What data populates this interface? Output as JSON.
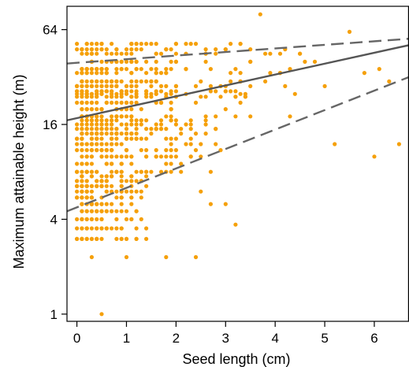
{
  "chart_data": {
    "type": "scatter",
    "title": "",
    "xlabel": "Seed length (cm)",
    "ylabel": "Maximum attainable height (m)",
    "xlim": [
      -0.2,
      6.7
    ],
    "ylim": [
      0.9,
      90
    ],
    "yscale": "log2",
    "xticks": [
      0,
      1,
      2,
      3,
      4,
      5,
      6
    ],
    "yticks": [
      1,
      4,
      16,
      64
    ],
    "grid": false,
    "legend": "none",
    "colors": {
      "points": "#f5a00a",
      "fit_line": "#555555",
      "interval_line": "#666666"
    },
    "fit_line": {
      "style": "solid",
      "points": [
        [
          -0.2,
          17.0
        ],
        [
          6.7,
          51.0
        ]
      ]
    },
    "interval_lines": [
      {
        "style": "dashed",
        "points": [
          [
            -0.2,
            39.0
          ],
          [
            6.7,
            56.0
          ]
        ]
      },
      {
        "style": "dashed",
        "points": [
          [
            -0.2,
            4.5
          ],
          [
            6.7,
            32.0
          ]
        ]
      }
    ],
    "seed": 42
  }
}
